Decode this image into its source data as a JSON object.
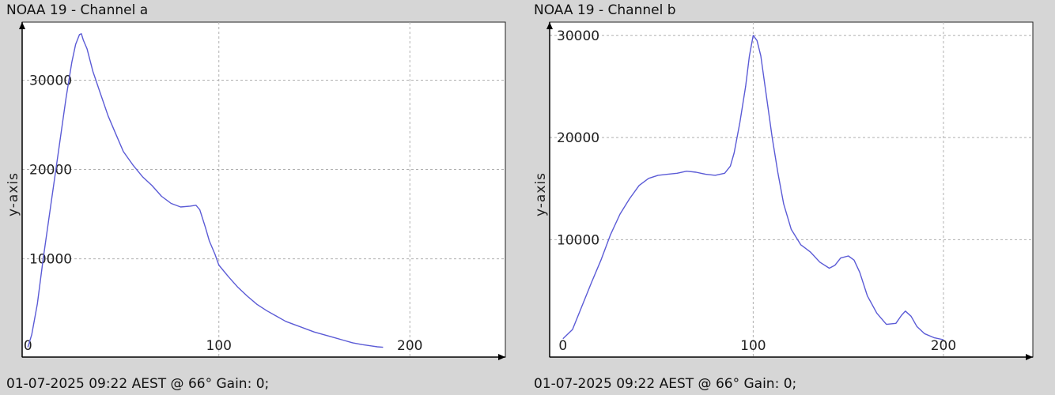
{
  "colors": {
    "background": "#d6d6d6",
    "plot_background": "#ffffff",
    "line": "#5b5bd6",
    "grid": "#b0b0b0"
  },
  "chart_data": [
    {
      "type": "line",
      "title": "NOAA 19 - Channel a",
      "footer": "01-07-2025 09:22 AEST @ 66° Gain: 0;",
      "ylabel": "y-axis",
      "xlabel": "",
      "xlim": [
        -3,
        250
      ],
      "ylim": [
        -1000,
        36500
      ],
      "grid": true,
      "legend": "none",
      "x_ticks": [
        0,
        100,
        200
      ],
      "y_ticks": [
        10000,
        20000,
        30000
      ],
      "x": [
        0,
        2,
        5,
        8,
        12,
        16,
        20,
        23,
        25,
        27,
        28,
        29,
        31,
        34,
        38,
        42,
        46,
        50,
        55,
        60,
        65,
        70,
        75,
        80,
        85,
        88,
        90,
        93,
        95,
        98,
        100,
        105,
        110,
        115,
        120,
        125,
        130,
        135,
        140,
        145,
        150,
        155,
        160,
        165,
        170,
        175,
        180,
        183,
        186
      ],
      "values": [
        100,
        1500,
        5000,
        10000,
        16000,
        22000,
        28000,
        32000,
        34000,
        35100,
        35200,
        34500,
        33500,
        31000,
        28500,
        26000,
        24000,
        22000,
        20500,
        19200,
        18200,
        17000,
        16200,
        15800,
        15900,
        16000,
        15500,
        13500,
        12000,
        10500,
        9300,
        8000,
        6800,
        5800,
        4900,
        4200,
        3600,
        3000,
        2600,
        2200,
        1800,
        1500,
        1200,
        900,
        600,
        400,
        250,
        150,
        100
      ]
    },
    {
      "type": "line",
      "title": "NOAA 19 - Channel b",
      "footer": "01-07-2025 09:22 AEST @ 66° Gain: 0;",
      "ylabel": "y-axis",
      "xlabel": "",
      "xlim": [
        -7,
        247
      ],
      "ylim": [
        -1500,
        31300
      ],
      "grid": true,
      "legend": "none",
      "x_ticks": [
        0,
        100,
        200
      ],
      "y_ticks": [
        10000,
        20000,
        30000
      ],
      "x": [
        0,
        5,
        10,
        15,
        20,
        25,
        30,
        35,
        40,
        45,
        50,
        55,
        60,
        65,
        70,
        75,
        80,
        85,
        88,
        90,
        93,
        96,
        98,
        100,
        102,
        104,
        107,
        110,
        113,
        116,
        120,
        125,
        130,
        135,
        140,
        143,
        146,
        150,
        153,
        156,
        160,
        165,
        170,
        175,
        178,
        180,
        183,
        186,
        190,
        195,
        200
      ],
      "values": [
        300,
        1200,
        3500,
        5800,
        8000,
        10500,
        12500,
        14000,
        15300,
        16000,
        16300,
        16400,
        16500,
        16700,
        16600,
        16400,
        16300,
        16500,
        17200,
        18500,
        21500,
        25000,
        28000,
        30000,
        29500,
        28000,
        24000,
        20000,
        16500,
        13500,
        11000,
        9500,
        8800,
        7800,
        7200,
        7500,
        8200,
        8400,
        8000,
        6800,
        4500,
        2800,
        1700,
        1800,
        2600,
        3000,
        2500,
        1500,
        800,
        400,
        200
      ]
    }
  ]
}
